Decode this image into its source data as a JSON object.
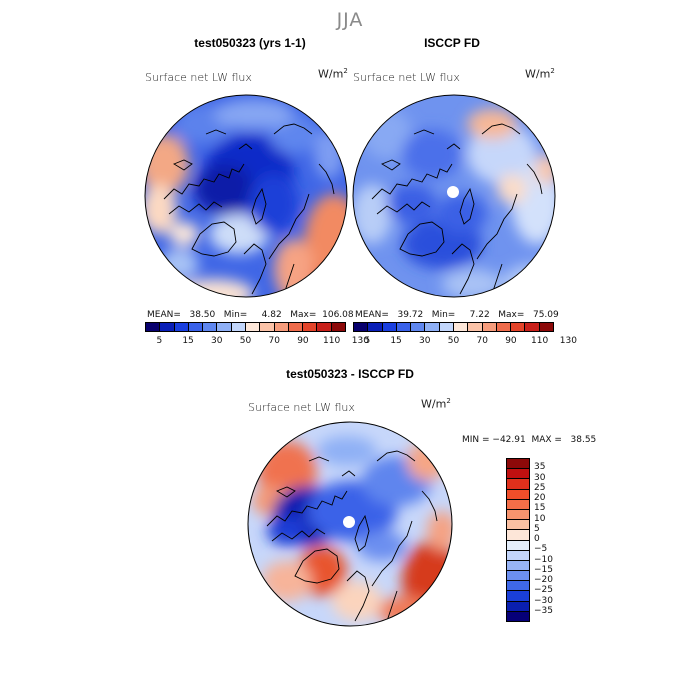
{
  "season_title": "JJA",
  "panels": {
    "model": {
      "title": "test050323 (yrs 1-1)",
      "variable": "Surface net LW flux",
      "units": "W/m",
      "units_exp": "2",
      "stats": "MEAN=   38.50   Min=     4.82   Max=  106.08"
    },
    "obs": {
      "title": "ISCCP FD",
      "variable": "Surface net LW flux",
      "units": "W/m",
      "units_exp": "2",
      "stats": "MEAN=   39.72   Min=     7.22   Max=   75.09"
    },
    "diff": {
      "title": "test050323 - ISCCP FD",
      "variable": "Surface net LW flux",
      "units": "W/m",
      "units_exp": "2",
      "stats": "MIN = −42.91  MAX =   38.55"
    }
  },
  "colorbar_abs": {
    "labels": [
      "5",
      "15",
      "30",
      "50",
      "70",
      "90",
      "110",
      "130"
    ],
    "colors": [
      "#08006e",
      "#0a1fb8",
      "#1a3fe0",
      "#3a62ea",
      "#5f87f0",
      "#8fb0f6",
      "#c2d6fb",
      "#fde7d9",
      "#fbc3a8",
      "#f69c7c",
      "#ef6c4c",
      "#e4442a",
      "#c8201a",
      "#8c0909"
    ]
  },
  "colorbar_diff": {
    "labels": [
      "35",
      "30",
      "25",
      "20",
      "15",
      "10",
      "5",
      "0",
      "−5",
      "−10",
      "−15",
      "−20",
      "−25",
      "−30",
      "−35"
    ],
    "colors": [
      "#8c0909",
      "#c01010",
      "#e0301c",
      "#f04e2a",
      "#f46e48",
      "#f7946e",
      "#fbc0a2",
      "#fde6d8",
      "#e4eefb",
      "#c3d5fb",
      "#98b4f6",
      "#6c8ff0",
      "#3f68e8",
      "#1a3fd8",
      "#0a1fb0",
      "#060078"
    ]
  }
}
